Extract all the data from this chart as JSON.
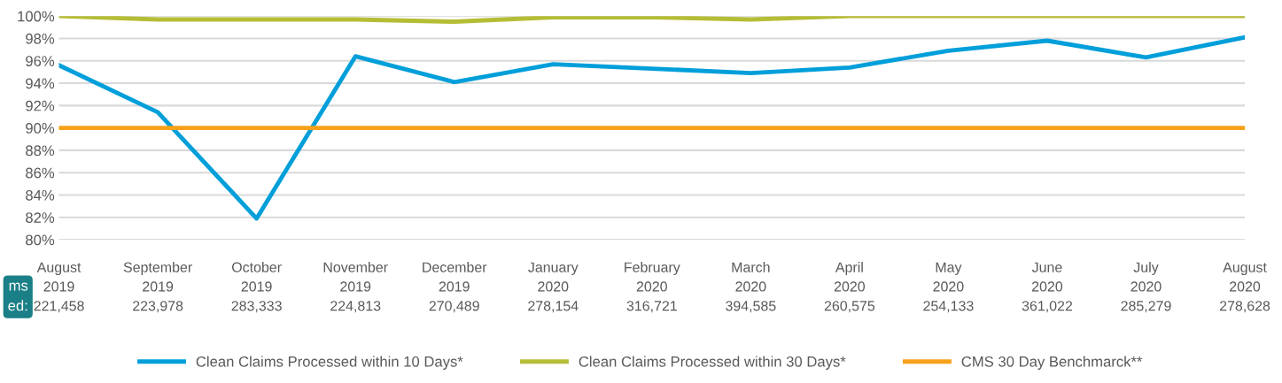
{
  "chart_data": {
    "type": "line",
    "categories": [
      "August\n2019\n221,458",
      "September\n2019\n223,978",
      "October\n2019\n283,333",
      "November\n2019\n224,813",
      "December\n2019\n270,489",
      "January\n2020\n278,154",
      "February\n2020\n316,721",
      "March\n2020\n394,585",
      "April\n2020\n260,575",
      "May\n2020\n254,133",
      "June\n2020\n361,022",
      "July\n2020\n285,279",
      "August\n2020\n278,628"
    ],
    "series": [
      {
        "name": "Clean Claims Processed within 10 Days*",
        "color": "#009fda",
        "values": [
          95.6,
          91.4,
          81.9,
          96.4,
          94.1,
          95.7,
          95.3,
          94.9,
          95.4,
          96.9,
          97.8,
          96.3,
          98.1
        ]
      },
      {
        "name": "Clean Claims Processed within 30 Days*",
        "color": "#b5bd35",
        "values": [
          100,
          99.7,
          99.7,
          99.7,
          99.5,
          99.9,
          99.9,
          99.7,
          100,
          100,
          100,
          100,
          100
        ]
      },
      {
        "name": "CMS 30 Day Benchmarck**",
        "color": "#f7a11a",
        "values": [
          90,
          90,
          90,
          90,
          90,
          90,
          90,
          90,
          90,
          90,
          90,
          90,
          90
        ]
      }
    ],
    "ylim": [
      80,
      100
    ],
    "yticks": [
      {
        "value": 80,
        "label": "80%"
      },
      {
        "value": 82,
        "label": "82%"
      },
      {
        "value": 84,
        "label": "84%"
      },
      {
        "value": 86,
        "label": "86%"
      },
      {
        "value": 88,
        "label": "88%"
      },
      {
        "value": 90,
        "label": "90%"
      },
      {
        "value": 92,
        "label": "92%"
      },
      {
        "value": 94,
        "label": "94%"
      },
      {
        "value": 96,
        "label": "96%"
      },
      {
        "value": 98,
        "label": "98%"
      },
      {
        "value": 100,
        "label": "100%"
      }
    ],
    "annotations": [
      "ms\ned:"
    ],
    "grid": "y",
    "legend": "bottom",
    "marker": "none",
    "line_style": "solid"
  }
}
